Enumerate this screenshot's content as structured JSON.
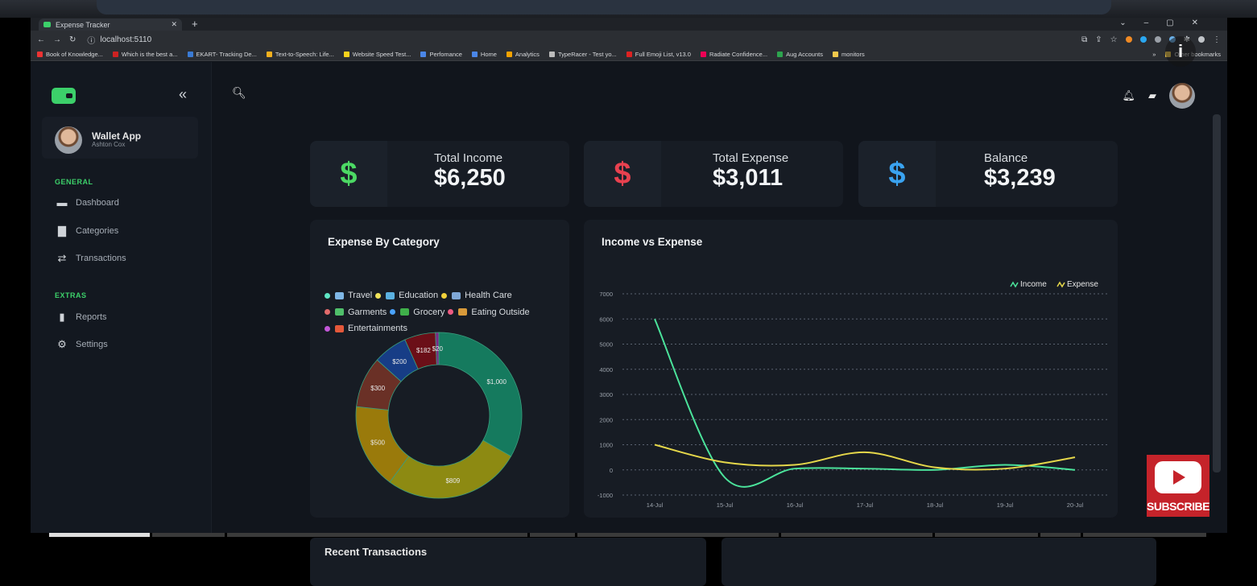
{
  "browser": {
    "tab_title": "Expense Tracker",
    "new_tab": "+",
    "url": "localhost:5110",
    "bookmarks": [
      "Book of Knowledge...",
      "Which is the best a...",
      "EKART- Tracking De...",
      "Text-to-Speech: Life...",
      "Website Speed Test...",
      "Perfomance",
      "Home",
      "Analytics",
      "TypeRacer - Test yo...",
      "Full Emoji List, v13.0",
      "Radiate Confidence...",
      "Aug Accounts",
      "monitors"
    ],
    "bookmarks_more": "»",
    "other_bookmarks": "Other bookmarks"
  },
  "sidebar": {
    "collapse": "«",
    "user": {
      "name": "Wallet App",
      "subtitle": "Ashton Cox"
    },
    "general_label": "GENERAL",
    "general_items": [
      {
        "label": "Dashboard",
        "icon": "briefcase-icon"
      },
      {
        "label": "Categories",
        "icon": "folder-icon"
      },
      {
        "label": "Transactions",
        "icon": "transfer-icon"
      }
    ],
    "extras_label": "EXTRAS",
    "extras_items": [
      {
        "label": "Reports",
        "icon": "bar-chart-icon"
      },
      {
        "label": "Settings",
        "icon": "gear-icon"
      }
    ]
  },
  "stats": [
    {
      "label": "Total Income",
      "value": "$6,250",
      "symbol": "$",
      "color": "#4cd964"
    },
    {
      "label": "Total Expense",
      "value": "$3,011",
      "symbol": "$",
      "color": "#e8414f"
    },
    {
      "label": "Balance",
      "value": "$3,239",
      "symbol": "$",
      "color": "#3aa3f0"
    }
  ],
  "donut": {
    "title": "Expense By Category",
    "legend": [
      {
        "label": "Travel",
        "color": "#5ee6c4"
      },
      {
        "label": "Education",
        "color": "#f0e35a"
      },
      {
        "label": "Health Care",
        "color": "#f0d03a"
      },
      {
        "label": "Garments",
        "color": "#e26b6b"
      },
      {
        "label": "Grocery",
        "color": "#4aa3ff"
      },
      {
        "label": "Eating Outside",
        "color": "#ee5b82"
      },
      {
        "label": "Entertainments",
        "color": "#c257d8"
      }
    ]
  },
  "chart_data": [
    {
      "type": "pie",
      "title": "Expense By Category",
      "categories": [
        "Travel",
        "Education",
        "Health Care",
        "Garments",
        "Grocery",
        "Eating Outside",
        "Entertainments"
      ],
      "values": [
        1000,
        809,
        500,
        300,
        200,
        182,
        20
      ],
      "data_labels": [
        "$1,000",
        "$809",
        "$500",
        "$300",
        "$200",
        "$182",
        "$20"
      ],
      "colors": [
        "#157a5e",
        "#8d8a12",
        "#9a7a0b",
        "#6a3026",
        "#173d86",
        "#6b0f18",
        "#7b2a86"
      ]
    },
    {
      "type": "line",
      "title": "Income vs Expense",
      "x": [
        "14-Jul",
        "15-Jul",
        "16-Jul",
        "17-Jul",
        "18-Jul",
        "19-Jul",
        "20-Jul"
      ],
      "series": [
        {
          "name": "Income",
          "values": [
            6000,
            -300,
            50,
            50,
            0,
            200,
            0
          ],
          "color": "#4be39b"
        },
        {
          "name": "Expense",
          "values": [
            1000,
            300,
            200,
            700,
            100,
            50,
            500
          ],
          "color": "#e5d74a"
        }
      ],
      "ylim": [
        -1000,
        7000
      ],
      "yticks": [
        "7000",
        "6000",
        "5000",
        "4000",
        "3000",
        "2000",
        "1000",
        "0",
        "-1000"
      ],
      "grid": true,
      "legend": "top-right"
    }
  ],
  "recent": {
    "title": "Recent Transactions"
  },
  "subscribe": {
    "label": "SUBSCRIBE"
  },
  "info_icon": "i"
}
